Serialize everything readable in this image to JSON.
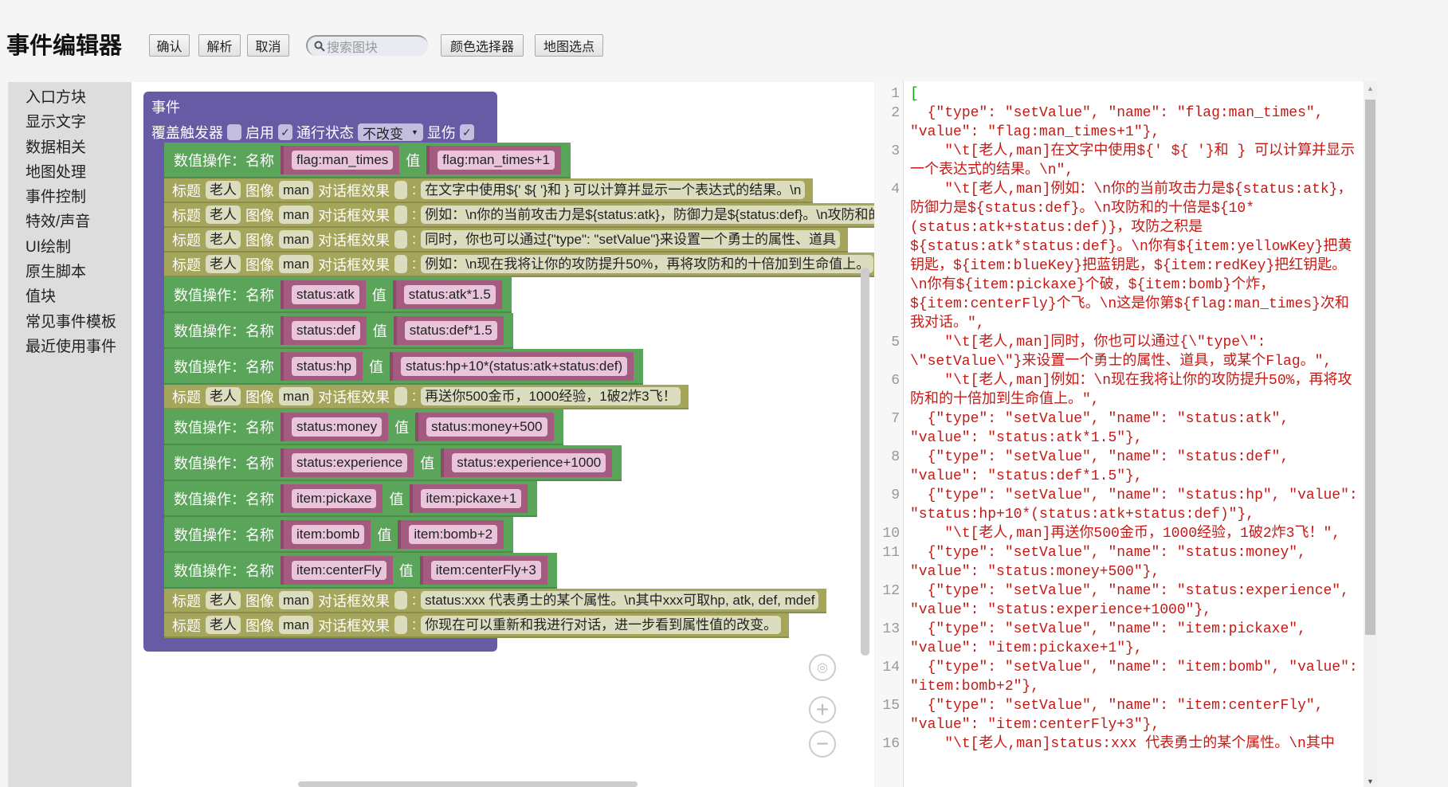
{
  "header": {
    "title": "事件编辑器",
    "buttons": {
      "confirm": "确认",
      "parse": "解析",
      "cancel": "取消",
      "color_picker": "颜色选择器",
      "map_pick": "地图选点"
    },
    "search_placeholder": "搜索图块"
  },
  "sidebar": {
    "items": [
      "入口方块",
      "显示文字",
      "数据相关",
      "地图处理",
      "事件控制",
      "特效/声音",
      "UI绘制",
      "原生脚本",
      "值块",
      "常见事件模板",
      "最近使用事件"
    ]
  },
  "event_block": {
    "title": "事件",
    "override_label": "覆盖触发器",
    "enable_label": "启用",
    "enable_checked": true,
    "pass_label": "通行状态",
    "pass_value": "不改变",
    "damage_label": "显伤",
    "damage_checked": true
  },
  "block_labels": {
    "set_value": "数值操作：名称",
    "value": "值",
    "title": "标题",
    "image": "图像",
    "effect": "对话框效果",
    "colon": ":"
  },
  "blocks": [
    {
      "type": "setValue",
      "name": "flag:man_times",
      "value": "flag:man_times+1"
    },
    {
      "type": "text",
      "title": "老人",
      "image": "man",
      "text": "在文字中使用${' ${ '}和 } 可以计算并显示一个表达式的结果。\\n"
    },
    {
      "type": "text",
      "title": "老人",
      "image": "man",
      "text": "例如：\\n你的当前攻击力是${status:atk}，防御力是${status:def}。\\n攻防和的十倍是"
    },
    {
      "type": "text",
      "title": "老人",
      "image": "man",
      "text": "同时，你也可以通过{\"type\": \"setValue\"}来设置一个勇士的属性、道具"
    },
    {
      "type": "text",
      "title": "老人",
      "image": "man",
      "text": "例如：\\n现在我将让你的攻防提升50%，再将攻防和的十倍加到生命值上。"
    },
    {
      "type": "setValue",
      "name": "status:atk",
      "value": "status:atk*1.5"
    },
    {
      "type": "setValue",
      "name": "status:def",
      "value": "status:def*1.5"
    },
    {
      "type": "setValue",
      "name": "status:hp",
      "value": "status:hp+10*(status:atk+status:def)"
    },
    {
      "type": "text",
      "title": "老人",
      "image": "man",
      "text": "再送你500金币，1000经验，1破2炸3飞！"
    },
    {
      "type": "setValue",
      "name": "status:money",
      "value": "status:money+500"
    },
    {
      "type": "setValue",
      "name": "status:experience",
      "value": "status:experience+1000"
    },
    {
      "type": "setValue",
      "name": "item:pickaxe",
      "value": "item:pickaxe+1"
    },
    {
      "type": "setValue",
      "name": "item:bomb",
      "value": "item:bomb+2"
    },
    {
      "type": "setValue",
      "name": "item:centerFly",
      "value": "item:centerFly+3"
    },
    {
      "type": "text",
      "title": "老人",
      "image": "man",
      "text": "status:xxx 代表勇士的某个属性。\\n其中xxx可取hp, atk, def, mdef"
    },
    {
      "type": "text",
      "title": "老人",
      "image": "man",
      "text": "你现在可以重新和我进行对话，进一步看到属性值的改变。"
    }
  ],
  "code_lines": [
    "[",
    "  {\"type\": \"setValue\", \"name\": \"flag:man_times\", \"value\": \"flag:man_times+1\"},",
    "    \"\\t[老人,man]在文字中使用${' ${ '}和 } 可以计算并显示一个表达式的结果。\\n\",",
    "    \"\\t[老人,man]例如：\\n你的当前攻击力是${status:atk}，防御力是${status:def}。\\n攻防和的十倍是${10*(status:atk+status:def)}，攻防之积是${status:atk*status:def}。\\n你有${item:yellowKey}把黄钥匙，${item:blueKey}把蓝钥匙，${item:redKey}把红钥匙。\\n你有${item:pickaxe}个破，${item:bomb}个炸，${item:centerFly}个飞。\\n这是你第${flag:man_times}次和我对话。\",",
    "    \"\\t[老人,man]同时，你也可以通过{\\\"type\\\": \\\"setValue\\\"}来设置一个勇士的属性、道具，或某个Flag。\",",
    "    \"\\t[老人,man]例如：\\n现在我将让你的攻防提升50%，再将攻防和的十倍加到生命值上。\",",
    "  {\"type\": \"setValue\", \"name\": \"status:atk\", \"value\": \"status:atk*1.5\"},",
    "  {\"type\": \"setValue\", \"name\": \"status:def\", \"value\": \"status:def*1.5\"},",
    "  {\"type\": \"setValue\", \"name\": \"status:hp\", \"value\": \"status:hp+10*(status:atk+status:def)\"},",
    "    \"\\t[老人,man]再送你500金币，1000经验，1破2炸3飞！\",",
    "  {\"type\": \"setValue\", \"name\": \"status:money\", \"value\": \"status:money+500\"},",
    "  {\"type\": \"setValue\", \"name\": \"status:experience\", \"value\": \"status:experience+1000\"},",
    "  {\"type\": \"setValue\", \"name\": \"item:pickaxe\", \"value\": \"item:pickaxe+1\"},",
    "  {\"type\": \"setValue\", \"name\": \"item:bomb\", \"value\": \"item:bomb+2\"},",
    "  {\"type\": \"setValue\", \"name\": \"item:centerFly\", \"value\": \"item:centerFly+3\"},",
    "    \"\\t[老人,man]status:xxx 代表勇士的某个属性。\\n其中"
  ],
  "colors": {
    "event": "#675ba5",
    "set_value": "#5ba55b",
    "text_block": "#a5a55b",
    "field": "#a55b80",
    "code_text": "#c41a16"
  }
}
